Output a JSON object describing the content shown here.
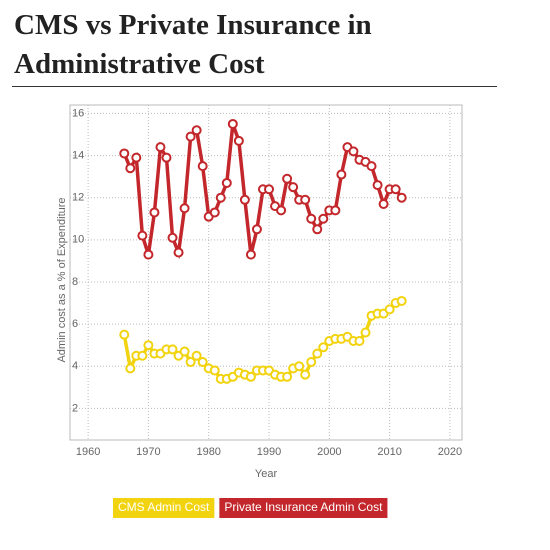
{
  "chart_data": {
    "type": "line",
    "title": "CMS vs Private Insurance in Administrative Cost",
    "x_label": "Year",
    "y_label": "Admin cost as a % of Expenditure",
    "x": [
      1966,
      1967,
      1968,
      1969,
      1970,
      1971,
      1972,
      1973,
      1974,
      1975,
      1976,
      1977,
      1978,
      1979,
      1980,
      1981,
      1982,
      1983,
      1984,
      1985,
      1986,
      1987,
      1988,
      1989,
      1990,
      1991,
      1992,
      1993,
      1994,
      1995,
      1996,
      1997,
      1998,
      1999,
      2000,
      2001,
      2002,
      2003,
      2004,
      2005,
      2006,
      2007,
      2008,
      2009,
      2010,
      2011,
      2012
    ],
    "series": [
      {
        "name": "CMS Admin Cost",
        "color": "#f2d30f",
        "values": [
          5.5,
          3.9,
          4.5,
          4.5,
          5.0,
          4.6,
          4.6,
          4.8,
          4.8,
          4.5,
          4.7,
          4.2,
          4.5,
          4.2,
          3.9,
          3.8,
          3.4,
          3.4,
          3.5,
          3.7,
          3.6,
          3.5,
          3.8,
          3.8,
          3.8,
          3.6,
          3.5,
          3.5,
          3.9,
          4.0,
          3.6,
          4.2,
          4.6,
          4.9,
          5.2,
          5.3,
          5.3,
          5.4,
          5.2,
          5.2,
          5.6,
          6.4,
          6.5,
          6.5,
          6.7,
          7.0,
          7.1
        ]
      },
      {
        "name": "Private Insurance Admin Cost",
        "color": "#c3272b",
        "values": [
          14.1,
          13.4,
          13.9,
          10.2,
          9.3,
          11.3,
          14.4,
          13.9,
          10.1,
          9.4,
          11.5,
          14.9,
          15.2,
          13.5,
          11.1,
          11.3,
          12.0,
          12.7,
          15.5,
          14.7,
          11.9,
          9.3,
          10.5,
          12.4,
          12.4,
          11.6,
          11.4,
          12.9,
          12.5,
          11.9,
          11.9,
          11.0,
          10.5,
          11.0,
          11.4,
          11.4,
          13.1,
          14.4,
          14.2,
          13.8,
          13.7,
          13.5,
          12.6,
          11.7,
          12.4,
          12.4,
          12.0
        ]
      }
    ],
    "xlim": [
      1957,
      2022
    ],
    "xticks": [
      1960,
      1970,
      1980,
      1990,
      2000,
      2010,
      2020
    ],
    "ylim": [
      0.5,
      16.4
    ],
    "yticks": [
      2,
      4,
      6,
      8,
      10,
      12,
      14,
      16
    ],
    "grid": true
  }
}
